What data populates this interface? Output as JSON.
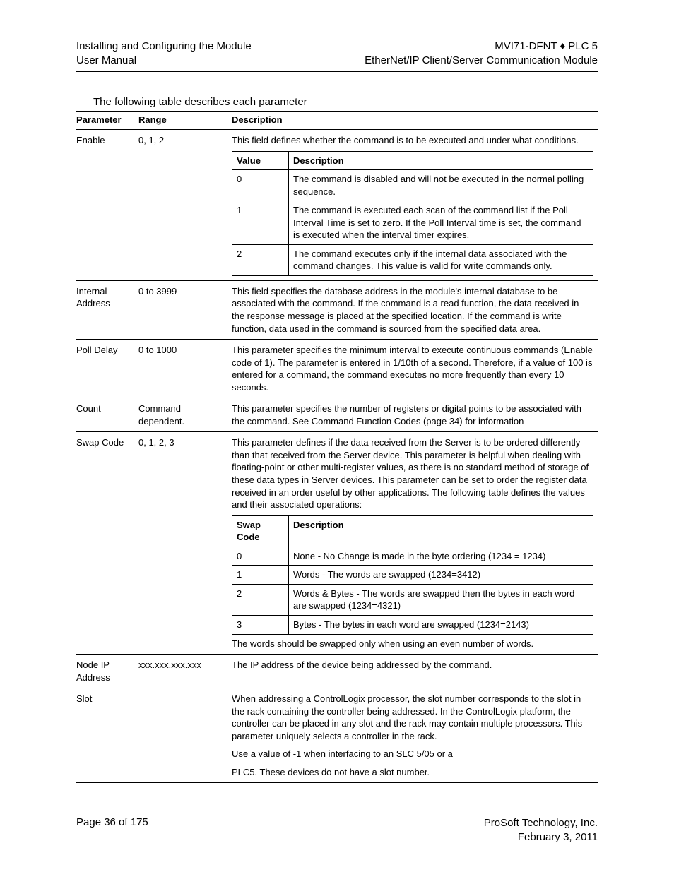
{
  "header_left_1": "Installing and Configuring the Module",
  "header_left_2": "User Manual",
  "header_right_1a": "MVI71-DFNT ",
  "header_right_1b": "♦",
  "header_right_1c": " PLC 5",
  "header_right_2": "EtherNet/IP Client/Server Communication Module",
  "intro": "The following table describes each parameter",
  "outer_headers": {
    "param": "Parameter",
    "range": "Range",
    "desc": "Description"
  },
  "rows": {
    "enable": {
      "param": "Enable",
      "range": "0, 1, 2",
      "desc": "This field defines whether the command is to be executed and under what conditions.",
      "inner_headers": {
        "a": "Value",
        "b": "Description"
      },
      "items": [
        {
          "a": "0",
          "b": "The command is disabled and will not be executed in the normal polling sequence."
        },
        {
          "a": "1",
          "b": "The command is executed each scan of the command list if the Poll Interval Time is set to zero. If the Poll Interval time is set, the command is executed when the interval timer expires."
        },
        {
          "a": "2",
          "b": "The command executes only if the internal data associated with the command changes. This value is valid for write commands only."
        }
      ]
    },
    "internal_addr": {
      "param": "Internal Address",
      "range": "0 to 3999",
      "desc": "This field specifies the database address in the module's internal database to be associated with the command. If the command is a read function, the data received in the response message is placed at the specified location. If the command is write function, data used in the command is sourced from the specified data area."
    },
    "poll_delay": {
      "param": "Poll Delay",
      "range": "0 to 1000",
      "desc": "This parameter specifies the minimum interval to execute continuous commands (Enable code of 1). The parameter is entered in 1/10th of a second. Therefore, if a value of 100 is entered for a command, the command executes no more frequently than every 10 seconds."
    },
    "count": {
      "param": "Count",
      "range": "Command dependent.",
      "desc": "This parameter specifies the number of registers or digital points to be associated with the command. See Command Function Codes (page 34) for information"
    },
    "swap_code": {
      "param": "Swap Code",
      "range": "0, 1, 2, 3",
      "desc": "This parameter defines if the data received from the Server is to be ordered differently than that received from the Server device. This parameter is helpful when dealing with floating-point or other multi-register values, as there is no standard method of storage of these data types in Server devices. This parameter can be set to order the register data received in an order useful by other applications. The following table defines the values and their associated operations:",
      "inner_headers": {
        "a": "Swap Code",
        "b": "Description"
      },
      "items": [
        {
          "a": "0",
          "b": "None - No Change is made in the byte ordering (1234 = 1234)"
        },
        {
          "a": "1",
          "b": "Words - The words are swapped (1234=3412)"
        },
        {
          "a": "2",
          "b": "Words & Bytes - The words are swapped then the bytes in each word are swapped (1234=4321)"
        },
        {
          "a": "3",
          "b": "Bytes - The bytes in each word are swapped (1234=2143)"
        }
      ],
      "post": "The words should be swapped only when using an even number of words."
    },
    "node_ip": {
      "param": "Node IP Address",
      "range": "xxx.xxx.xxx.xxx",
      "desc": "The IP address of the device being addressed by the command."
    },
    "slot": {
      "param": "Slot",
      "range": "",
      "desc1": "When addressing a ControlLogix processor, the slot number corresponds to the slot in the rack containing the controller being addressed. In the ControlLogix platform, the controller can be placed in any slot and the rack may contain multiple processors. This parameter uniquely selects a controller in the rack.",
      "desc2": "Use a value of -1 when interfacing to an SLC 5/05 or a",
      "desc3": "PLC5. These devices do not have a slot number."
    }
  },
  "footer_left": "Page 36 of 175",
  "footer_right_1": "ProSoft Technology, Inc.",
  "footer_right_2": "February 3, 2011"
}
